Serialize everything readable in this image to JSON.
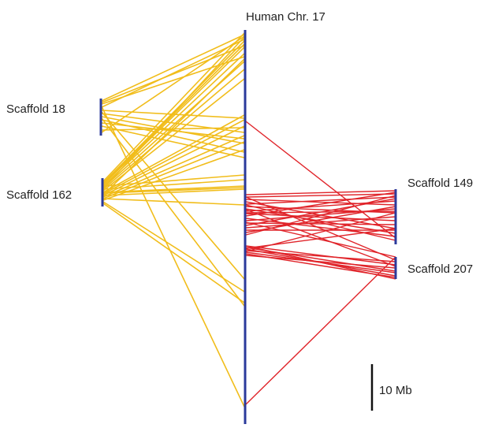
{
  "labels": {
    "human": "Human Chr. 17",
    "scaffold_18": "Scaffold 18",
    "scaffold_162": "Scaffold 162",
    "scaffold_149": "Scaffold 149",
    "scaffold_207": "Scaffold 207",
    "scale_bar": "10 Mb"
  },
  "colors": {
    "chromosome": "#2b3a9b",
    "left_links": "#f1bd1b",
    "right_links": "#e0242a",
    "scale_bar": "#111111"
  }
}
